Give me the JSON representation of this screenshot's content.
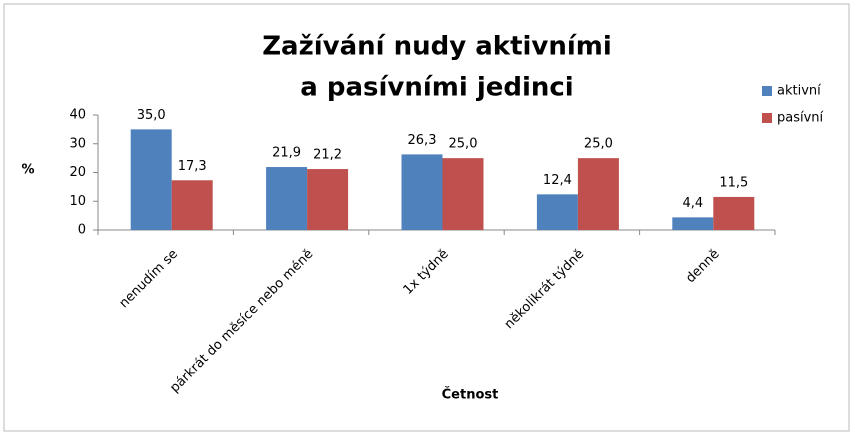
{
  "chart_data": {
    "type": "bar",
    "title": [
      "Zažívání nudy aktivními",
      "a pasívními jedinci"
    ],
    "y_label": "%",
    "x_label": "Četnost",
    "categories": [
      "nenudím se",
      "párkrát do měsíce nebo méně",
      "1x týdně",
      "několikrát týdně",
      "denně"
    ],
    "series": [
      {
        "name": "aktivní",
        "color": "#4f81bd",
        "values": [
          35.0,
          21.9,
          26.3,
          12.4,
          4.4
        ],
        "value_labels": [
          "35,0",
          "21,9",
          "26,3",
          "12,4",
          "4,4"
        ]
      },
      {
        "name": "pasívní",
        "color": "#c0504d",
        "values": [
          17.3,
          21.2,
          25.0,
          25.0,
          11.5
        ],
        "value_labels": [
          "17,3",
          "21,2",
          "25,0",
          "25,0",
          "11,5"
        ]
      }
    ],
    "ylim": [
      0,
      40
    ],
    "yticks": [
      0,
      10,
      20,
      30,
      40
    ],
    "legend": "right"
  }
}
